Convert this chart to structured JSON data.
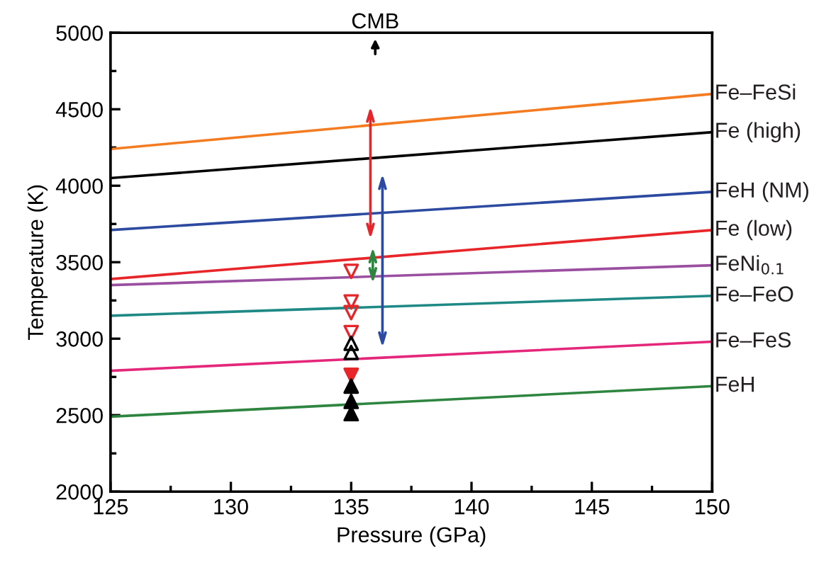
{
  "chart_data": {
    "type": "line",
    "xlabel": "Pressure (GPa)",
    "ylabel": "Temperature (K)",
    "xlim": [
      125,
      150
    ],
    "ylim": [
      2000,
      5000
    ],
    "xticks": [
      125,
      130,
      135,
      140,
      145,
      150
    ],
    "yticks": [
      2000,
      2500,
      3000,
      3500,
      4000,
      4500,
      5000
    ],
    "grid": false,
    "legend": false,
    "marker": "none",
    "x": [
      125,
      150
    ],
    "series": [
      {
        "name": "Fe–FeSi",
        "color": "#f47b20",
        "values": [
          4240,
          4600
        ]
      },
      {
        "name": "Fe (high)",
        "color": "#000000",
        "values": [
          4050,
          4350
        ]
      },
      {
        "name": "FeH (NM)",
        "color": "#2b4aa0",
        "values": [
          3710,
          3960
        ]
      },
      {
        "name": "Fe (low)",
        "color": "#e8262a",
        "values": [
          3390,
          3710
        ]
      },
      {
        "name": "FeNi$_{0.1}$",
        "color": "#9b4fa0",
        "values": [
          3350,
          3480
        ]
      },
      {
        "name": "Fe–FeO",
        "color": "#1f8a85",
        "values": [
          3150,
          3280
        ]
      },
      {
        "name": "Fe–FeS",
        "color": "#e4277b",
        "values": [
          2790,
          2980
        ]
      },
      {
        "name": "FeH",
        "color": "#2e8540",
        "values": [
          2490,
          2690
        ]
      },
      {
        "type": "line",
        "color": "#e8262a",
        "x": [
          135.8,
          135.8
        ],
        "values": [
          3680,
          4490
        ]
      },
      {
        "type": "line",
        "color": "#2b4aa0",
        "x": [
          136.3,
          136.3
        ],
        "values": [
          2970,
          4050
        ]
      },
      {
        "type": "line",
        "color": "#2e8540",
        "x": [
          135.9,
          135.9
        ],
        "values": [
          3390,
          3570
        ]
      },
      {
        "type": "scatter",
        "marker": "triangle-down-open",
        "color": "#e8262a",
        "x": [
          135,
          135,
          135,
          135
        ],
        "values": [
          3440,
          3240,
          3170,
          3040
        ]
      },
      {
        "type": "scatter",
        "marker": "triangle-open",
        "color": "#000000",
        "x": [
          135,
          135
        ],
        "values": [
          2970,
          2910
        ]
      },
      {
        "type": "scatter",
        "marker": "triangle-down",
        "color": "#e8262a",
        "x": [
          135
        ],
        "values": [
          2760
        ]
      },
      {
        "type": "scatter",
        "marker": "triangle",
        "color": "#000000",
        "x": [
          135,
          135,
          135
        ],
        "values": [
          2690,
          2590,
          2510
        ]
      }
    ],
    "annotations": [
      "CMB"
    ]
  }
}
